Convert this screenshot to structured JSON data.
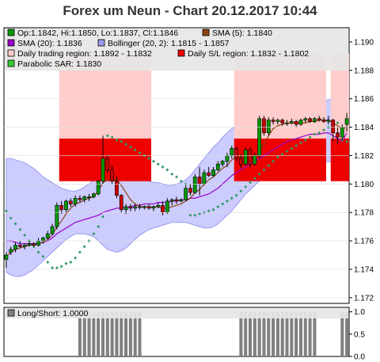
{
  "title": "Forex um Neun - Chart 20.12.2017 10:44",
  "colors": {
    "candle_up": "#009900",
    "candle_down": "#cc0000",
    "sma5": "#8b4513",
    "sma20": "#9900cc",
    "bollinger_fill": "#ccccff",
    "bollinger_edge": "#9999ee",
    "trading_region": "#ffcccc",
    "sl_region": "#ee0000",
    "sar": "#339966",
    "long_short": "#808080"
  },
  "legend": [
    {
      "swatch": "#009900",
      "text": "Op:1.1842, Hi:1.1850, Lo:1.1837, Cl:1.1846"
    },
    {
      "swatch": "#8b4513",
      "text": "SMA (5): 1.1840"
    },
    {
      "swatch": "#9900cc",
      "text": "SMA (20): 1.1836"
    },
    {
      "swatch": "#9999ee",
      "text": "Bollinger (20, 2): 1.1815 - 1.1857"
    },
    {
      "swatch": "#ffcccc",
      "text": "Daily trading region: 1.1892 - 1.1832"
    },
    {
      "swatch": "#ee0000",
      "text": "Daily S/L region: 1.1832 - 1.1802"
    },
    {
      "swatch": "#33cc33",
      "text": "Parabolic SAR: 1.1830"
    }
  ],
  "lower_legend": {
    "swatch": "#808080",
    "text": "Long/Short: 1.0000"
  },
  "chart_data": [
    {
      "type": "candlestick",
      "yticks": [
        "1.172",
        "1.174",
        "1.176",
        "1.178",
        "1.180",
        "1.182",
        "1.184",
        "1.186",
        "1.188",
        "1.190"
      ],
      "ylim": [
        1.1716,
        1.191
      ],
      "candles": [
        [
          1.1747,
          1.1752,
          1.1741,
          1.175
        ],
        [
          1.1752,
          1.1756,
          1.175,
          1.1754
        ],
        [
          1.1754,
          1.1759,
          1.1752,
          1.1757
        ],
        [
          1.1757,
          1.176,
          1.1755,
          1.1756
        ],
        [
          1.1756,
          1.1758,
          1.1754,
          1.1757
        ],
        [
          1.1757,
          1.176,
          1.1756,
          1.1758
        ],
        [
          1.1758,
          1.1759,
          1.1756,
          1.1757
        ],
        [
          1.1757,
          1.1762,
          1.1756,
          1.176
        ],
        [
          1.176,
          1.1763,
          1.1758,
          1.1762
        ],
        [
          1.1762,
          1.1767,
          1.1761,
          1.1765
        ],
        [
          1.1765,
          1.1772,
          1.1764,
          1.177
        ],
        [
          1.177,
          1.1787,
          1.1768,
          1.1785
        ],
        [
          1.1785,
          1.1788,
          1.1779,
          1.1782
        ],
        [
          1.1782,
          1.1789,
          1.178,
          1.1788
        ],
        [
          1.1788,
          1.179,
          1.1784,
          1.1786
        ],
        [
          1.1786,
          1.1792,
          1.1784,
          1.179
        ],
        [
          1.179,
          1.1792,
          1.1787,
          1.1789
        ],
        [
          1.1789,
          1.1792,
          1.1787,
          1.1791
        ],
        [
          1.1791,
          1.1793,
          1.1788,
          1.1791
        ],
        [
          1.1791,
          1.1794,
          1.179,
          1.1793
        ],
        [
          1.1793,
          1.1803,
          1.1792,
          1.1802
        ],
        [
          1.1802,
          1.1834,
          1.18,
          1.1818
        ],
        [
          1.1818,
          1.182,
          1.1808,
          1.181
        ],
        [
          1.181,
          1.1813,
          1.18,
          1.1802
        ],
        [
          1.1802,
          1.1805,
          1.179,
          1.1792
        ],
        [
          1.1792,
          1.1793,
          1.178,
          1.1782
        ],
        [
          1.1782,
          1.1786,
          1.1779,
          1.1784
        ],
        [
          1.1784,
          1.1786,
          1.1781,
          1.1783
        ],
        [
          1.1783,
          1.1786,
          1.1781,
          1.1784
        ],
        [
          1.1784,
          1.1786,
          1.1782,
          1.1784
        ],
        [
          1.1784,
          1.1785,
          1.1782,
          1.1784
        ],
        [
          1.1784,
          1.1786,
          1.1782,
          1.1783
        ],
        [
          1.1783,
          1.1785,
          1.1781,
          1.1784
        ],
        [
          1.1784,
          1.1787,
          1.1783,
          1.1785
        ],
        [
          1.1785,
          1.1788,
          1.1778,
          1.178
        ],
        [
          1.178,
          1.179,
          1.1779,
          1.1788
        ],
        [
          1.1788,
          1.179,
          1.1785,
          1.1789
        ],
        [
          1.1789,
          1.1791,
          1.1786,
          1.1788
        ],
        [
          1.1788,
          1.179,
          1.1787,
          1.1789
        ],
        [
          1.1789,
          1.1799,
          1.1788,
          1.1797
        ],
        [
          1.1797,
          1.18,
          1.1792,
          1.1794
        ],
        [
          1.1794,
          1.1807,
          1.1793,
          1.1805
        ],
        [
          1.1805,
          1.1812,
          1.1792,
          1.18
        ],
        [
          1.18,
          1.181,
          1.1799,
          1.1808
        ],
        [
          1.1808,
          1.1812,
          1.1805,
          1.1806
        ],
        [
          1.1806,
          1.1812,
          1.1805,
          1.181
        ],
        [
          1.181,
          1.1816,
          1.1809,
          1.1814
        ],
        [
          1.1814,
          1.1817,
          1.1812,
          1.1816
        ],
        [
          1.1816,
          1.1822,
          1.1812,
          1.182
        ],
        [
          1.182,
          1.1827,
          1.1818,
          1.1825
        ],
        [
          1.1825,
          1.1826,
          1.1816,
          1.1818
        ],
        [
          1.1818,
          1.1821,
          1.1811,
          1.1814
        ],
        [
          1.1814,
          1.1826,
          1.1813,
          1.1824
        ],
        [
          1.1824,
          1.1826,
          1.1812,
          1.1814
        ],
        [
          1.1814,
          1.1822,
          1.1813,
          1.182
        ],
        [
          1.182,
          1.1848,
          1.1818,
          1.1846
        ],
        [
          1.1846,
          1.1848,
          1.1834,
          1.1836
        ],
        [
          1.1836,
          1.1847,
          1.1834,
          1.1845
        ],
        [
          1.1845,
          1.1847,
          1.1842,
          1.1844
        ],
        [
          1.1844,
          1.1846,
          1.1842,
          1.1845
        ],
        [
          1.1845,
          1.1846,
          1.1841,
          1.1843
        ],
        [
          1.1843,
          1.1845,
          1.1841,
          1.1843
        ],
        [
          1.1843,
          1.1846,
          1.1842,
          1.1844
        ],
        [
          1.1844,
          1.1845,
          1.184,
          1.1842
        ],
        [
          1.1842,
          1.1846,
          1.1841,
          1.1845
        ],
        [
          1.1845,
          1.1847,
          1.1843,
          1.1846
        ],
        [
          1.1846,
          1.1847,
          1.1843,
          1.1844
        ],
        [
          1.1844,
          1.1847,
          1.1843,
          1.1846
        ],
        [
          1.1846,
          1.1848,
          1.1844,
          1.1845
        ],
        [
          1.1845,
          1.1847,
          1.1843,
          1.1844
        ],
        [
          1.1844,
          1.1848,
          1.1842,
          1.1845
        ],
        [
          1.1845,
          1.1846,
          1.183,
          1.1836
        ],
        [
          1.1836,
          1.184,
          1.1828,
          1.1833
        ],
        [
          1.1833,
          1.1842,
          1.1831,
          1.184
        ],
        [
          1.1842,
          1.185,
          1.1837,
          1.1846
        ]
      ],
      "sma5": [
        1.1749,
        1.1752,
        1.1754,
        1.1755,
        1.1756,
        1.1757,
        1.1757,
        1.1758,
        1.1759,
        1.1761,
        1.1764,
        1.177,
        1.1774,
        1.1779,
        1.1783,
        1.1786,
        1.1787,
        1.1789,
        1.179,
        1.1791,
        1.1795,
        1.1801,
        1.1803,
        1.1804,
        1.1803,
        1.1799,
        1.1794,
        1.1789,
        1.1786,
        1.1784,
        1.1784,
        1.1784,
        1.1784,
        1.1784,
        1.1783,
        1.1783,
        1.1784,
        1.1785,
        1.1786,
        1.1788,
        1.179,
        1.1794,
        1.1796,
        1.18,
        1.1803,
        1.1805,
        1.1808,
        1.1811,
        1.1813,
        1.1817,
        1.1819,
        1.1819,
        1.182,
        1.182,
        1.1818,
        1.1823,
        1.1828,
        1.1834,
        1.1839,
        1.1841,
        1.1842,
        1.1843,
        1.1843,
        1.1843,
        1.1843,
        1.1843,
        1.1844,
        1.1844,
        1.1845,
        1.1845,
        1.1845,
        1.1843,
        1.1841,
        1.1839,
        1.184
      ],
      "sma20": [
        1.176,
        1.176,
        1.1759,
        1.1758,
        1.1758,
        1.1758,
        1.1758,
        1.1758,
        1.1759,
        1.176,
        1.1762,
        1.1765,
        1.1767,
        1.1769,
        1.1771,
        1.1773,
        1.1774,
        1.1775,
        1.1776,
        1.1777,
        1.1778,
        1.178,
        1.1781,
        1.1782,
        1.1783,
        1.1783,
        1.1784,
        1.1784,
        1.1785,
        1.1785,
        1.1786,
        1.1786,
        1.1786,
        1.1787,
        1.1787,
        1.1787,
        1.1788,
        1.1788,
        1.1789,
        1.1789,
        1.179,
        1.179,
        1.1791,
        1.1792,
        1.1793,
        1.1795,
        1.1797,
        1.18,
        1.1803,
        1.1806,
        1.1808,
        1.181,
        1.1812,
        1.1814,
        1.1816,
        1.1818,
        1.182,
        1.1822,
        1.1824,
        1.1826,
        1.1828,
        1.183,
        1.1831,
        1.1832,
        1.1833,
        1.1834,
        1.1835,
        1.1835,
        1.1835,
        1.1836,
        1.1836,
        1.1834,
        1.1832,
        1.183,
        1.1836
      ],
      "boll_upper": [
        1.1818,
        1.1818,
        1.1817,
        1.1816,
        1.1815,
        1.1813,
        1.1811,
        1.1808,
        1.1805,
        1.1803,
        1.1801,
        1.1799,
        1.1797,
        1.1796,
        1.1795,
        1.1795,
        1.1796,
        1.1798,
        1.18,
        1.1803,
        1.1808,
        1.1813,
        1.1817,
        1.1819,
        1.182,
        1.1819,
        1.1816,
        1.1812,
        1.1808,
        1.1805,
        1.1803,
        1.1802,
        1.1801,
        1.1801,
        1.18,
        1.1799,
        1.1799,
        1.18,
        1.1801,
        1.1803,
        1.1806,
        1.181,
        1.1814,
        1.1818,
        1.1822,
        1.1826,
        1.1829,
        1.1833,
        1.1836,
        1.1839,
        1.1841,
        1.1843,
        1.1845,
        1.1847,
        1.1849,
        1.1852,
        1.1855,
        1.1857,
        1.1859,
        1.186,
        1.186,
        1.186,
        1.1859,
        1.1858,
        1.1857,
        1.1857,
        1.1856,
        1.1856,
        1.1857,
        1.1858,
        1.1859,
        1.186,
        1.186,
        1.1858,
        1.1857
      ],
      "boll_lower": [
        1.1738,
        1.1736,
        1.1735,
        1.1735,
        1.1736,
        1.1738,
        1.174,
        1.1743,
        1.1746,
        1.1749,
        1.1752,
        1.1755,
        1.1758,
        1.1761,
        1.1763,
        1.1765,
        1.1765,
        1.1765,
        1.1764,
        1.1763,
        1.176,
        1.1757,
        1.1754,
        1.1753,
        1.1752,
        1.1753,
        1.1755,
        1.1758,
        1.1761,
        1.1764,
        1.1766,
        1.1768,
        1.1769,
        1.177,
        1.1771,
        1.1772,
        1.1773,
        1.1773,
        1.1773,
        1.1773,
        1.1772,
        1.1771,
        1.177,
        1.1769,
        1.1769,
        1.177,
        1.1772,
        1.1775,
        1.1778,
        1.1781,
        1.1785,
        1.1789,
        1.1793,
        1.1796,
        1.1799,
        1.1802,
        1.1804,
        1.1806,
        1.1808,
        1.181,
        1.1811,
        1.1812,
        1.1813,
        1.1813,
        1.1813,
        1.1812,
        1.1812,
        1.1813,
        1.1814,
        1.1815,
        1.1816,
        1.1815,
        1.1813,
        1.1814,
        1.1815
      ],
      "regions": [
        {
          "start": 12,
          "end": 31,
          "trading": [
            1.1892,
            1.1832
          ],
          "sl": [
            1.1832,
            1.1802
          ]
        },
        {
          "start": 50,
          "end": 69,
          "trading": [
            1.1892,
            1.1832
          ],
          "sl": [
            1.1832,
            1.1802
          ]
        },
        {
          "start": 71,
          "end": 74,
          "trading": [
            1.1892,
            1.1832
          ],
          "sl": [
            1.1832,
            1.1802
          ]
        }
      ],
      "sar": [
        1.1781,
        1.1776,
        1.1772,
        1.1768,
        1.1764,
        1.176,
        1.1756,
        1.1752,
        1.1749,
        1.1745,
        1.1741,
        1.1741,
        1.1742,
        1.1744,
        1.1745,
        1.1748,
        1.1752,
        1.1756,
        1.176,
        1.1765,
        1.177,
        1.1777,
        1.1834,
        1.1833,
        1.1831,
        1.183,
        1.1828,
        1.1826,
        1.1824,
        1.1822,
        1.182,
        1.1818,
        1.1816,
        1.1814,
        1.1812,
        1.181,
        1.1807,
        1.1805,
        1.1802,
        1.18,
        1.1778,
        1.1778,
        1.1779,
        1.178,
        1.1781,
        1.1782,
        1.1784,
        1.1786,
        1.1788,
        1.179,
        1.1792,
        1.1795,
        1.1798,
        1.1801,
        1.1804,
        1.1807,
        1.181,
        1.1813,
        1.1816,
        1.1819,
        1.1821,
        1.1823,
        1.1825,
        1.1827,
        1.1829,
        1.1831,
        1.1833,
        1.1835,
        1.1836,
        1.1838,
        1.184,
        1.1844,
        1.1843,
        1.1831,
        1.183
      ]
    },
    {
      "type": "bar",
      "series_name": "Long/Short",
      "yticks": [
        "0.0",
        "0.5",
        "1.0"
      ],
      "ylim": [
        0,
        1.1
      ],
      "values": [
        0,
        0,
        0,
        0,
        0,
        0,
        0,
        0,
        0,
        0,
        0,
        0,
        0,
        0,
        0,
        0,
        1,
        1,
        1,
        1,
        1,
        1,
        1,
        1,
        1,
        1,
        1,
        1,
        1,
        1,
        0,
        0,
        0,
        0,
        0,
        0,
        0,
        0,
        0,
        0,
        0,
        0,
        0,
        0,
        0,
        0,
        0,
        0,
        0,
        0,
        0,
        1,
        1,
        1,
        1,
        1,
        1,
        1,
        1,
        1,
        1,
        1,
        1,
        1,
        1,
        1,
        1,
        1,
        0,
        0,
        0,
        0,
        0,
        1,
        1
      ]
    }
  ]
}
